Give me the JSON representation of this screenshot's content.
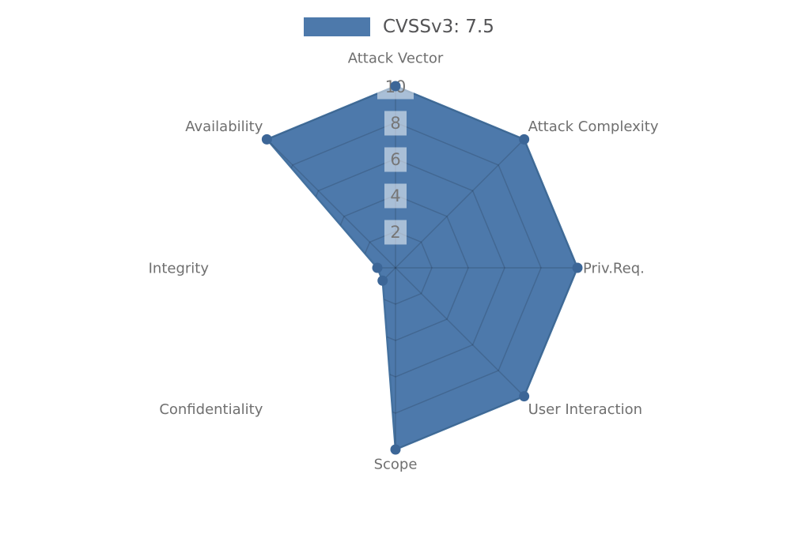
{
  "legend": {
    "label": "CVSSv3: 7.5"
  },
  "chart_data": {
    "type": "radar",
    "title": "CVSSv3: 7.5",
    "legend_position": "top-center",
    "categories": [
      "Attack Vector",
      "Attack Complexity",
      "Priv.Req.",
      "User Interaction",
      "Scope",
      "Confidentiality",
      "Integrity",
      "Availability"
    ],
    "series": [
      {
        "name": "CVSSv3: 7.5",
        "values": [
          10,
          10,
          10,
          10,
          10,
          1,
          1,
          10
        ]
      }
    ],
    "radial_ticks": [
      2,
      4,
      6,
      8,
      10
    ],
    "range": [
      0,
      10
    ],
    "grid": "spider-web (polygon rings + spokes), visible only under the filled area",
    "colors": {
      "fill": "#4d79ab",
      "stroke": "#44719f",
      "marker": "#3c6697",
      "grid_line": "rgba(0,0,0,0.14)",
      "tick_box": "rgba(255,255,255,0.52)",
      "tick_text": "#767676",
      "category_text": "#6f6f6f",
      "legend_text": "#545456"
    }
  }
}
